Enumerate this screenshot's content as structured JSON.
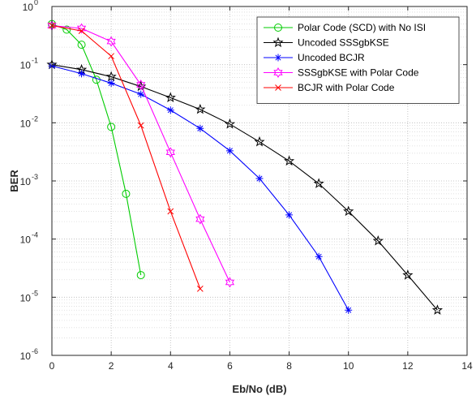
{
  "chart_data": {
    "type": "line",
    "xlabel": "Eb/No (dB)",
    "ylabel": "BER",
    "xlim": [
      0,
      14
    ],
    "ylim_exponents": [
      -6,
      0
    ],
    "yscale": "log",
    "grid": "major-and-minor dotted",
    "legend_position": "top-right",
    "x_ticks": [
      "0",
      "2",
      "4",
      "6",
      "8",
      "10",
      "12",
      "14"
    ],
    "y_ticks": [
      {
        "base": "10",
        "exp": "0"
      },
      {
        "base": "10",
        "exp": "-1"
      },
      {
        "base": "10",
        "exp": "-2"
      },
      {
        "base": "10",
        "exp": "-3"
      },
      {
        "base": "10",
        "exp": "-4"
      },
      {
        "base": "10",
        "exp": "-5"
      },
      {
        "base": "10",
        "exp": "-6"
      }
    ],
    "series": [
      {
        "name": "Polar Code (SCD) with No ISI",
        "color": "#00cc00",
        "marker": "circle",
        "x": [
          0,
          0.5,
          1,
          1.5,
          2,
          2.5,
          3
        ],
        "y": [
          0.5,
          0.4,
          0.22,
          0.055,
          0.0085,
          0.0006,
          2.4e-05
        ]
      },
      {
        "name": "Uncoded SSSgbKSE",
        "color": "#000000",
        "marker": "star",
        "x": [
          0,
          1,
          2,
          3,
          4,
          5,
          6,
          7,
          8,
          9,
          10,
          11,
          12,
          13
        ],
        "y": [
          0.1,
          0.082,
          0.062,
          0.042,
          0.027,
          0.017,
          0.0095,
          0.0047,
          0.0022,
          0.0009,
          0.0003,
          9.3e-05,
          2.4e-05,
          6e-06
        ]
      },
      {
        "name": "Uncoded BCJR",
        "color": "#0000ff",
        "marker": "asterisk",
        "x": [
          0,
          1,
          2,
          3,
          4,
          5,
          6,
          7,
          8,
          9,
          10
        ],
        "y": [
          0.095,
          0.07,
          0.048,
          0.031,
          0.0165,
          0.008,
          0.0033,
          0.0011,
          0.00026,
          5e-05,
          6e-06
        ]
      },
      {
        "name": "SSSgbKSE with Polar Code",
        "color": "#ff00ff",
        "marker": "hexagram",
        "x": [
          0,
          1,
          2,
          3,
          4,
          5,
          6
        ],
        "y": [
          0.47,
          0.42,
          0.25,
          0.045,
          0.0031,
          0.00022,
          1.8e-05
        ]
      },
      {
        "name": "BCJR with Polar Code",
        "color": "#ff0000",
        "marker": "x",
        "x": [
          0,
          1,
          2,
          3,
          4,
          5
        ],
        "y": [
          0.47,
          0.38,
          0.14,
          0.009,
          0.0003,
          1.4e-05
        ]
      }
    ]
  }
}
